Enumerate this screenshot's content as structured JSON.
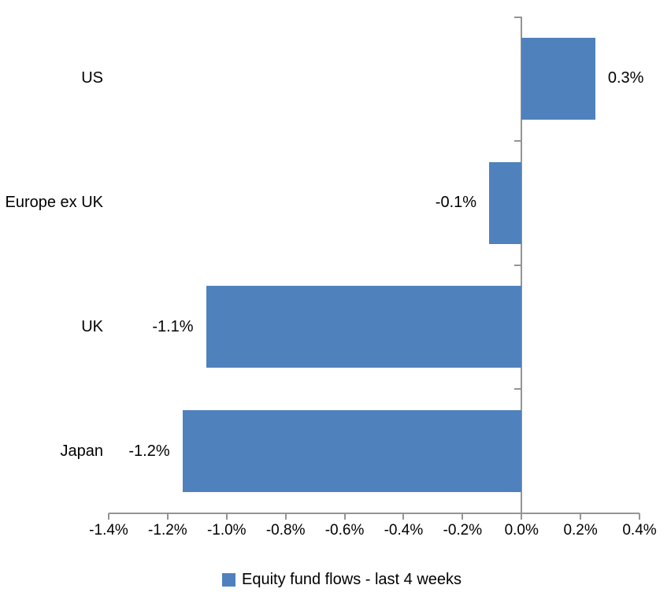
{
  "chart_data": {
    "type": "bar",
    "orientation": "horizontal",
    "categories": [
      "US",
      "Europe ex UK",
      "UK",
      "Japan"
    ],
    "values": [
      0.3,
      -0.1,
      -1.1,
      -1.2
    ],
    "value_labels": [
      "0.3%",
      "-0.1%",
      "-1.1%",
      "-1.2%"
    ],
    "plotted_values": [
      0.25,
      -0.11,
      -1.07,
      -1.15
    ],
    "unit": "%",
    "xlim": [
      -1.4,
      0.4
    ],
    "x_ticks": [
      -1.4,
      -1.2,
      -1.0,
      -0.8,
      -0.6,
      -0.4,
      -0.2,
      0.0,
      0.2,
      0.4
    ],
    "x_tick_labels": [
      "-1.4%",
      "-1.2%",
      "-1.0%",
      "-0.8%",
      "-0.6%",
      "-0.4%",
      "-0.2%",
      "0.0%",
      "0.2%",
      "0.4%"
    ],
    "grid": false,
    "legend_position": "bottom",
    "legend": {
      "label": "Equity fund flows - last 4 weeks",
      "swatch_color": "#4F81BD"
    },
    "colors": {
      "bar": "#4F81BD",
      "axis": "#949494",
      "text": "#000000",
      "background": "#FFFFFF"
    }
  }
}
